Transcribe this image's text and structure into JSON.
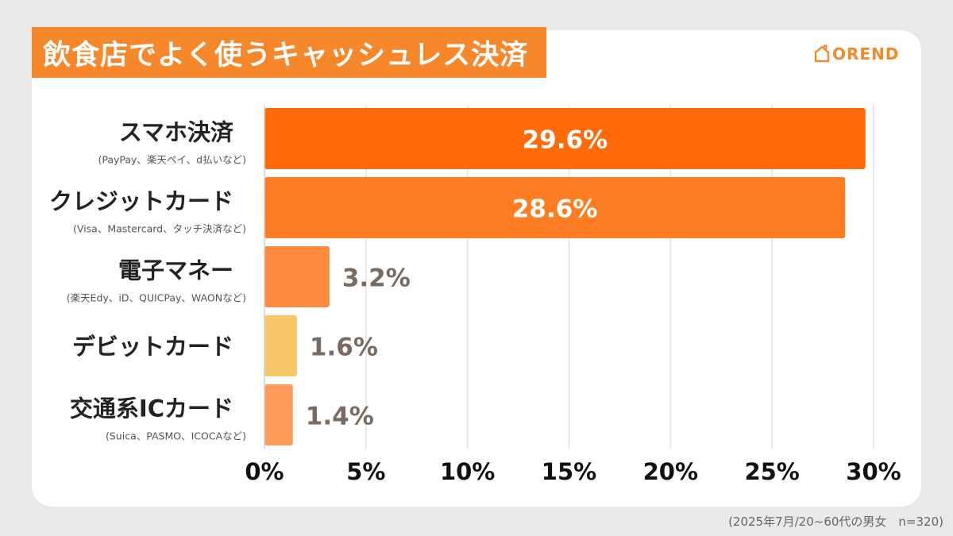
{
  "title": "飲食店でよく使うキャッシュレス決済",
  "brand": {
    "name": "OREND",
    "icon": "house-outline-icon",
    "color": "#ef8a2d"
  },
  "footnote": "(2025年7月/20~60代の男女　n=320)",
  "colors": {
    "title_bg": "#f7872b",
    "value_dark": "#7a6a60",
    "value_light": "#ffffff"
  },
  "chart_data": {
    "type": "bar",
    "orientation": "horizontal",
    "categories": [
      "スマホ決済",
      "クレジットカード",
      "電子マネー",
      "デビットカード",
      "交通系ICカード"
    ],
    "sublabels": [
      "(PayPay、楽天ペイ、d払いなど)",
      "(Visa、Mastercard、タッチ決済など)",
      "(楽天Edy、iD、QUICPay、WAONなど)",
      "",
      "(Suica、PASMO、ICOCAなど)"
    ],
    "values": [
      29.6,
      28.6,
      3.2,
      1.6,
      1.4
    ],
    "data_labels": [
      "29.6%",
      "28.6%",
      "3.2%",
      "1.6%",
      "1.4%"
    ],
    "bar_colors": [
      "#ff6a0a",
      "#ff7d22",
      "#ff8c3e",
      "#f8c76a",
      "#ff9a5a"
    ],
    "xlim": [
      0,
      30
    ],
    "xticks": [
      0,
      5,
      10,
      15,
      20,
      25,
      30
    ],
    "xtick_labels": [
      "0%",
      "5%",
      "10%",
      "15%",
      "20%",
      "25%",
      "30%"
    ],
    "grid": true
  }
}
